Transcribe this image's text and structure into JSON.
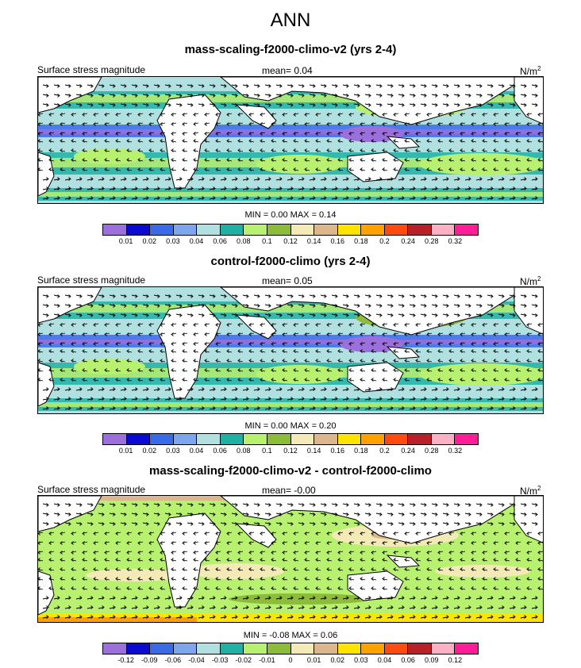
{
  "title": "ANN",
  "colors": {
    "abs_palette": [
      "#9b6fdc",
      "#0a0ad2",
      "#3a6ae8",
      "#7ea6ef",
      "#b0e0e0",
      "#20b0a4",
      "#b8f070",
      "#8cbc3a",
      "#f4eab8",
      "#dcb68c",
      "#ffe400",
      "#ffa200",
      "#ff4a10",
      "#b8202a",
      "#ffb0c4",
      "#ff1e98"
    ],
    "diff_palette": [
      "#9b6fdc",
      "#0a0ad2",
      "#3a6ae8",
      "#7ea6ef",
      "#b0e0e0",
      "#20b0a4",
      "#b8f070",
      "#8cbc3a",
      "#f4eab8",
      "#dcb68c",
      "#ffe400",
      "#ffa200",
      "#ff4a10",
      "#b8202a",
      "#ffb0c4",
      "#ff1e98"
    ],
    "land": "#ffffff"
  },
  "panels": [
    {
      "title": "mass-scaling-f2000-climo-v2 (yrs 2-4)",
      "left_label": "Surface stress magnitude",
      "mean_text": "mean=  0.04",
      "units_base": "N/m",
      "units_exp": "2",
      "minmax_text": "MIN =  0.00 MAX =  0.14",
      "colorbar_ticks": [
        "0.01",
        "0.02",
        "0.03",
        "0.04",
        "0.06",
        "0.08",
        "0.1",
        "0.12",
        "0.14",
        "0.16",
        "0.18",
        "0.2",
        "0.24",
        "0.28",
        "0.32"
      ]
    },
    {
      "title": "control-f2000-climo (yrs 2-4)",
      "left_label": "Surface stress magnitude",
      "mean_text": "mean=  0.05",
      "units_base": "N/m",
      "units_exp": "2",
      "minmax_text": "MIN =  0.00 MAX =  0.20",
      "colorbar_ticks": [
        "0.01",
        "0.02",
        "0.03",
        "0.04",
        "0.06",
        "0.08",
        "0.1",
        "0.12",
        "0.14",
        "0.16",
        "0.18",
        "0.2",
        "0.24",
        "0.28",
        "0.32"
      ]
    },
    {
      "title": "mass-scaling-f2000-climo-v2 - control-f2000-climo",
      "left_label": "Surface stress magnitude",
      "mean_text": "mean=  -0.00",
      "units_base": "N/m",
      "units_exp": "2",
      "minmax_text": "MIN =  -0.08 MAX =  0.06",
      "colorbar_ticks": [
        "-0.12",
        "-0.09",
        "-0.06",
        "-0.04",
        "-0.03",
        "-0.02",
        "-0.01",
        "0",
        "0.01",
        "0.02",
        "0.03",
        "0.04",
        "0.06",
        "0.09",
        "0.12"
      ]
    }
  ],
  "chart_data": [
    {
      "type": "heatmap",
      "title": "mass-scaling-f2000-climo-v2 (yrs 2-4)",
      "variable": "Surface stress magnitude",
      "units": "N/m2",
      "mean": 0.04,
      "min": 0.0,
      "max": 0.14,
      "levels": [
        0.01,
        0.02,
        0.03,
        0.04,
        0.06,
        0.08,
        0.1,
        0.12,
        0.14,
        0.16,
        0.18,
        0.2,
        0.24,
        0.28,
        0.32
      ]
    },
    {
      "type": "heatmap",
      "title": "control-f2000-climo (yrs 2-4)",
      "variable": "Surface stress magnitude",
      "units": "N/m2",
      "mean": 0.05,
      "min": 0.0,
      "max": 0.2,
      "levels": [
        0.01,
        0.02,
        0.03,
        0.04,
        0.06,
        0.08,
        0.1,
        0.12,
        0.14,
        0.16,
        0.18,
        0.2,
        0.24,
        0.28,
        0.32
      ]
    },
    {
      "type": "heatmap",
      "title": "mass-scaling-f2000-climo-v2 - control-f2000-climo",
      "variable": "Surface stress magnitude",
      "units": "N/m2",
      "mean": -0.0,
      "min": -0.08,
      "max": 0.06,
      "levels": [
        -0.12,
        -0.09,
        -0.06,
        -0.04,
        -0.03,
        -0.02,
        -0.01,
        0,
        0.01,
        0.02,
        0.03,
        0.04,
        0.06,
        0.09,
        0.12
      ]
    }
  ]
}
